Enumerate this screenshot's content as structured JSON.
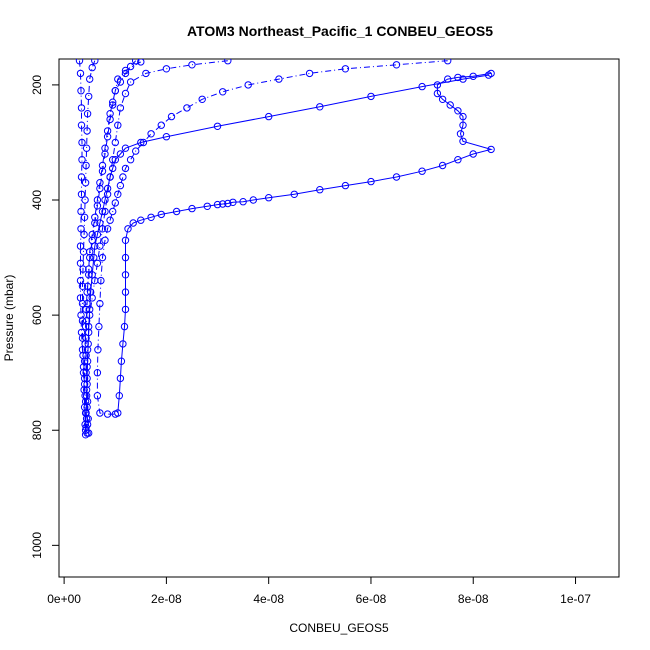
{
  "chart_data": {
    "type": "scatter",
    "title": "ATOM3 Northeast_Pacific_1 CONBEU_GEOS5",
    "xlabel": "CONBEU_GEOS5",
    "ylabel": "Pressure (mbar)",
    "xlim": [
      -1e-09,
      1.085e-07
    ],
    "ylim": [
      1055,
      155
    ],
    "y_reversed": true,
    "grid": false,
    "x_ticks": [
      0,
      2e-08,
      4e-08,
      6e-08,
      8e-08,
      1e-07
    ],
    "x_tick_labels": [
      "0e+00",
      "2e-08",
      "4e-08",
      "6e-08",
      "8e-08",
      "1e-07"
    ],
    "y_ticks": [
      200,
      400,
      600,
      800,
      1000
    ],
    "y_tick_labels": [
      "200",
      "400",
      "600",
      "800",
      "1000"
    ],
    "marker": "open-circle",
    "color": "#0000ff",
    "series": [
      {
        "line": "dashdot",
        "points": [
          [
            1.5e-08,
            160
          ],
          [
            1.2e-08,
            175
          ],
          [
            1.05e-08,
            190
          ],
          [
            1e-08,
            210
          ],
          [
            9.5e-09,
            235
          ],
          [
            9e-09,
            260
          ],
          [
            8.5e-09,
            290
          ],
          [
            8e-09,
            320
          ],
          [
            7.5e-09,
            350
          ],
          [
            7e-09,
            380
          ],
          [
            6.5e-09,
            410
          ],
          [
            6e-09,
            440
          ],
          [
            5.5e-09,
            470
          ],
          [
            5e-09,
            500
          ],
          [
            4.8e-09,
            530
          ],
          [
            4.5e-09,
            560
          ],
          [
            4.3e-09,
            590
          ],
          [
            4.2e-09,
            620
          ],
          [
            4.1e-09,
            650
          ],
          [
            4e-09,
            680
          ],
          [
            4e-09,
            710
          ],
          [
            4.1e-09,
            740
          ],
          [
            4.2e-09,
            770
          ],
          [
            4.3e-09,
            795
          ]
        ]
      },
      {
        "line": "dashdot",
        "points": [
          [
            3.2e-08,
            158
          ],
          [
            2.5e-08,
            165
          ],
          [
            2e-08,
            172
          ],
          [
            1.6e-08,
            180
          ],
          [
            1.3e-08,
            195
          ],
          [
            1.2e-08,
            215
          ],
          [
            1.1e-08,
            240
          ],
          [
            1.05e-08,
            270
          ],
          [
            1e-08,
            300
          ],
          [
            9.5e-09,
            330
          ],
          [
            9e-09,
            360
          ],
          [
            8.5e-09,
            390
          ],
          [
            8e-09,
            420
          ],
          [
            7.5e-09,
            450
          ],
          [
            7e-09,
            480
          ],
          [
            6.5e-09,
            510
          ],
          [
            6e-09,
            540
          ],
          [
            5.5e-09,
            570
          ],
          [
            5e-09,
            600
          ],
          [
            4.8e-09,
            630
          ],
          [
            4.6e-09,
            660
          ],
          [
            4.5e-09,
            690
          ],
          [
            4.5e-09,
            720
          ],
          [
            4.6e-09,
            750
          ],
          [
            4.7e-09,
            780
          ],
          [
            4.8e-09,
            805
          ]
        ]
      },
      {
        "line": "dashdot",
        "points": [
          [
            7.5e-08,
            158
          ],
          [
            6.5e-08,
            165
          ],
          [
            5.5e-08,
            172
          ],
          [
            4.8e-08,
            180
          ],
          [
            4.2e-08,
            190
          ],
          [
            3.6e-08,
            200
          ],
          [
            3.1e-08,
            212
          ],
          [
            2.7e-08,
            225
          ],
          [
            2.4e-08,
            240
          ],
          [
            2.1e-08,
            255
          ],
          [
            1.9e-08,
            270
          ],
          [
            1.7e-08,
            285
          ],
          [
            1.55e-08,
            300
          ],
          [
            1.4e-08,
            315
          ],
          [
            1.3e-08,
            330
          ],
          [
            1.2e-08,
            345
          ],
          [
            1.15e-08,
            360
          ],
          [
            1.1e-08,
            375
          ],
          [
            1.05e-08,
            390
          ],
          [
            1e-08,
            405
          ],
          [
            9.5e-09,
            420
          ],
          [
            9e-09,
            435
          ],
          [
            8.5e-09,
            450
          ],
          [
            8e-09,
            470
          ],
          [
            7.5e-09,
            500
          ],
          [
            7.2e-09,
            540
          ],
          [
            7e-09,
            580
          ],
          [
            6.8e-09,
            620
          ],
          [
            6.6e-09,
            660
          ],
          [
            6.5e-09,
            700
          ],
          [
            6.5e-09,
            740
          ],
          [
            7e-09,
            770
          ],
          [
            8.5e-09,
            772
          ],
          [
            1e-08,
            772
          ]
        ]
      },
      {
        "line": "solid",
        "points": [
          [
            8.35e-08,
            180
          ],
          [
            8e-08,
            185
          ],
          [
            7.7e-08,
            187
          ],
          [
            7.5e-08,
            190
          ],
          [
            7.3e-08,
            200
          ],
          [
            7.3e-08,
            215
          ],
          [
            7.4e-08,
            225
          ],
          [
            7.55e-08,
            235
          ],
          [
            7.7e-08,
            245
          ],
          [
            7.8e-08,
            255
          ],
          [
            7.8e-08,
            270
          ],
          [
            7.75e-08,
            285
          ],
          [
            7.8e-08,
            298
          ],
          [
            8.35e-08,
            312
          ],
          [
            8e-08,
            320
          ],
          [
            7.7e-08,
            330
          ],
          [
            7.4e-08,
            340
          ],
          [
            7e-08,
            350
          ],
          [
            6.5e-08,
            360
          ],
          [
            6e-08,
            368
          ],
          [
            5.5e-08,
            375
          ],
          [
            5e-08,
            382
          ],
          [
            4.5e-08,
            390
          ],
          [
            4e-08,
            396
          ],
          [
            3.7e-08,
            400
          ],
          [
            3.5e-08,
            403
          ],
          [
            3.3e-08,
            404
          ],
          [
            3.2e-08,
            406
          ],
          [
            3.1e-08,
            407
          ],
          [
            3e-08,
            408
          ],
          [
            2.8e-08,
            411
          ],
          [
            2.5e-08,
            415
          ],
          [
            2.2e-08,
            420
          ],
          [
            1.9e-08,
            425
          ],
          [
            1.7e-08,
            430
          ],
          [
            1.5e-08,
            435
          ],
          [
            1.35e-08,
            440
          ],
          [
            1.25e-08,
            450
          ],
          [
            1.2e-08,
            470
          ],
          [
            1.2e-08,
            500
          ],
          [
            1.2e-08,
            530
          ],
          [
            1.2e-08,
            560
          ],
          [
            1.2e-08,
            590
          ],
          [
            1.18e-08,
            620
          ],
          [
            1.15e-08,
            650
          ],
          [
            1.12e-08,
            680
          ],
          [
            1.1e-08,
            710
          ],
          [
            1.08e-08,
            740
          ],
          [
            1.05e-08,
            770
          ]
        ]
      },
      {
        "line": "solid",
        "points": [
          [
            8.3e-08,
            183
          ],
          [
            7.8e-08,
            190
          ],
          [
            7e-08,
            203
          ],
          [
            6e-08,
            220
          ],
          [
            5e-08,
            238
          ],
          [
            4e-08,
            255
          ],
          [
            3e-08,
            272
          ],
          [
            2e-08,
            290
          ],
          [
            1.5e-08,
            300
          ],
          [
            1.2e-08,
            310
          ],
          [
            1.1e-08,
            320
          ],
          [
            1e-08,
            330
          ],
          [
            9.5e-09,
            345
          ],
          [
            9e-09,
            360
          ],
          [
            8.5e-09,
            380
          ],
          [
            8e-09,
            400
          ],
          [
            7.5e-09,
            420
          ],
          [
            7e-09,
            440
          ],
          [
            6.5e-09,
            460
          ],
          [
            6e-09,
            480
          ],
          [
            5.8e-09,
            500
          ],
          [
            5.5e-09,
            530
          ],
          [
            5.2e-09,
            560
          ],
          [
            5e-09,
            590
          ],
          [
            4.8e-09,
            620
          ],
          [
            4.7e-09,
            650
          ],
          [
            4.6e-09,
            680
          ],
          [
            4.5e-09,
            710
          ],
          [
            4.4e-09,
            740
          ],
          [
            4.3e-09,
            770
          ],
          [
            4.2e-09,
            800
          ]
        ]
      },
      {
        "line": "dashdot",
        "points": [
          [
            6e-09,
            158
          ],
          [
            5.5e-09,
            170
          ],
          [
            5e-09,
            190
          ],
          [
            4.8e-09,
            220
          ],
          [
            4.6e-09,
            250
          ],
          [
            4.5e-09,
            280
          ],
          [
            4.4e-09,
            310
          ],
          [
            4.3e-09,
            340
          ],
          [
            4.2e-09,
            370
          ],
          [
            4.1e-09,
            400
          ],
          [
            4e-09,
            430
          ],
          [
            3.9e-09,
            460
          ],
          [
            3.8e-09,
            490
          ],
          [
            3.7e-09,
            520
          ],
          [
            3.6e-09,
            550
          ],
          [
            3.6e-09,
            580
          ],
          [
            3.6e-09,
            610
          ],
          [
            3.6e-09,
            640
          ],
          [
            3.7e-09,
            670
          ],
          [
            3.8e-09,
            700
          ],
          [
            3.9e-09,
            730
          ],
          [
            4e-09,
            760
          ],
          [
            4.1e-09,
            790
          ],
          [
            4.2e-09,
            808
          ]
        ]
      },
      {
        "line": "dashdot",
        "points": [
          [
            3e-09,
            158
          ],
          [
            3.2e-09,
            180
          ],
          [
            3.3e-09,
            210
          ],
          [
            3.4e-09,
            240
          ],
          [
            3.4e-09,
            270
          ],
          [
            3.5e-09,
            300
          ],
          [
            3.5e-09,
            330
          ],
          [
            3.4e-09,
            360
          ],
          [
            3.4e-09,
            390
          ],
          [
            3.3e-09,
            420
          ],
          [
            3.3e-09,
            450
          ],
          [
            3.2e-09,
            480
          ],
          [
            3.2e-09,
            510
          ],
          [
            3.2e-09,
            540
          ],
          [
            3.2e-09,
            570
          ],
          [
            3.3e-09,
            600
          ],
          [
            3.4e-09,
            630
          ],
          [
            3.6e-09,
            660
          ],
          [
            3.8e-09,
            690
          ],
          [
            4e-09,
            720
          ],
          [
            4.2e-09,
            750
          ],
          [
            4.4e-09,
            780
          ],
          [
            4.5e-09,
            805
          ]
        ]
      },
      {
        "line": "dashdot",
        "points": [
          [
            1.4e-08,
            158
          ],
          [
            1.3e-08,
            168
          ],
          [
            1.2e-08,
            180
          ],
          [
            1.1e-08,
            195
          ],
          [
            1e-08,
            210
          ],
          [
            9.5e-09,
            230
          ],
          [
            9e-09,
            250
          ],
          [
            8.5e-09,
            280
          ],
          [
            8e-09,
            310
          ],
          [
            7.5e-09,
            340
          ],
          [
            7e-09,
            370
          ],
          [
            6.5e-09,
            400
          ],
          [
            6e-09,
            430
          ],
          [
            5.5e-09,
            460
          ],
          [
            5e-09,
            490
          ],
          [
            4.8e-09,
            520
          ],
          [
            4.6e-09,
            550
          ],
          [
            4.5e-09,
            580
          ],
          [
            4.4e-09,
            610
          ],
          [
            4.3e-09,
            640
          ],
          [
            4.3e-09,
            670
          ],
          [
            4.3e-09,
            700
          ],
          [
            4.4e-09,
            730
          ],
          [
            4.5e-09,
            760
          ],
          [
            4.6e-09,
            790
          ]
        ]
      }
    ]
  }
}
